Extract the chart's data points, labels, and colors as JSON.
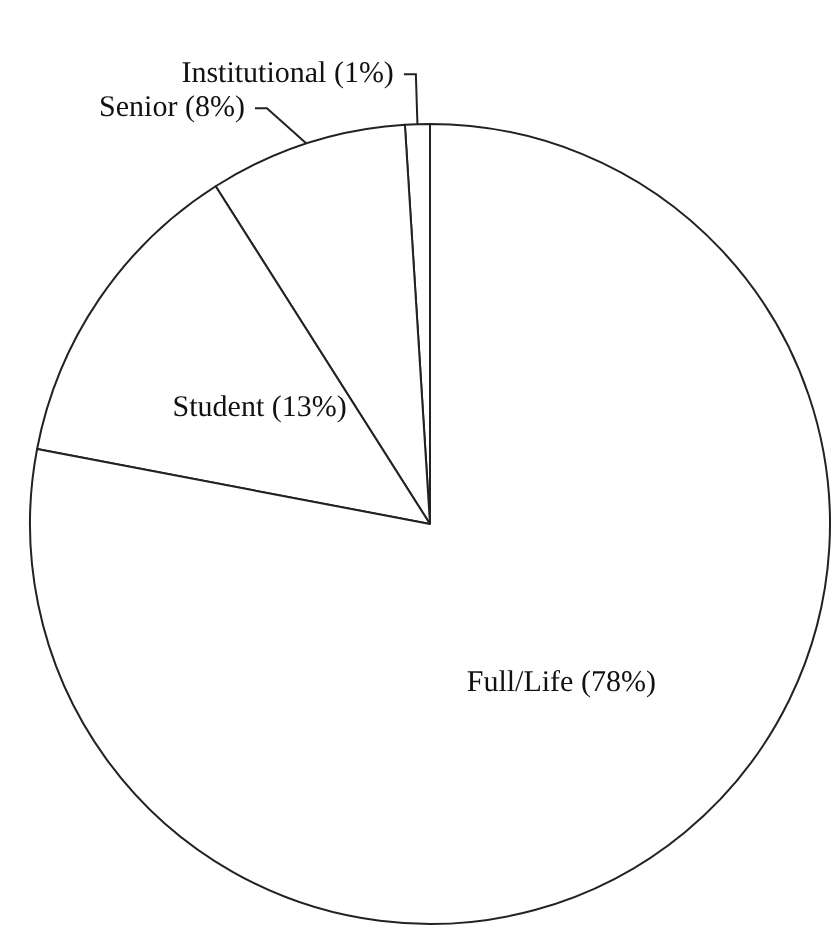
{
  "chart_data": {
    "type": "pie",
    "categories": [
      "Institutional (1%)",
      "Senior (8%)",
      "Student (13%)",
      "Full/Life (78%)"
    ],
    "values": [
      1,
      8,
      13,
      78
    ],
    "colors": [
      "#ffffff",
      "#ffffff",
      "#ffffff",
      "#ffffff"
    ]
  }
}
